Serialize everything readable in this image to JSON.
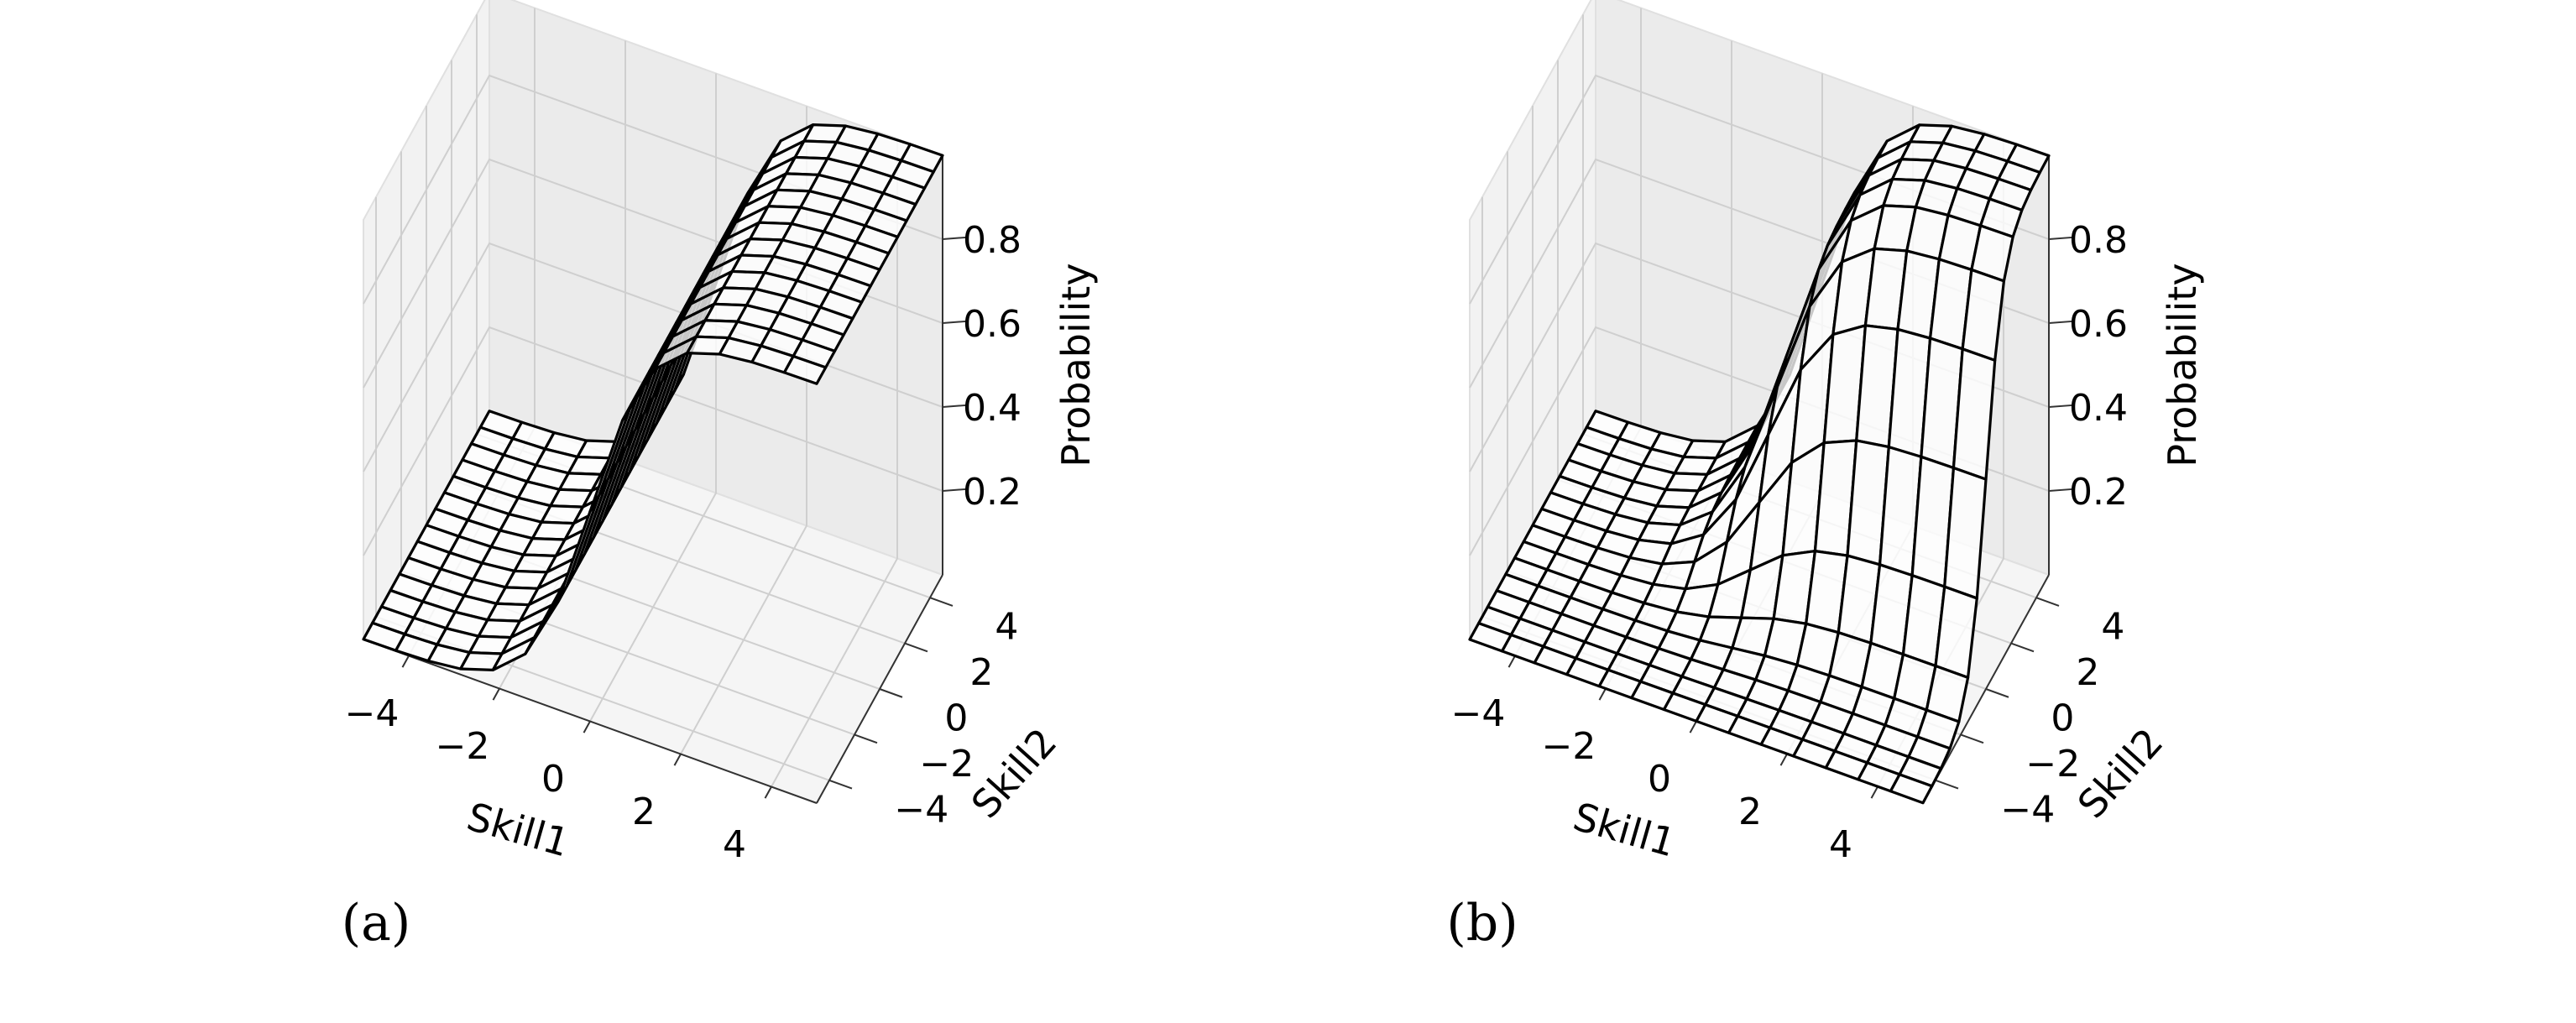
{
  "chart_data": [
    {
      "type": "surface3d",
      "caption": "(a)",
      "xlabel": "Skill1",
      "ylabel": "Skill2",
      "zlabel": "Probability",
      "xlim": [
        -5,
        5
      ],
      "ylim": [
        -5,
        5
      ],
      "zlim": [
        0,
        1
      ],
      "xticks": [
        "−4",
        "−2",
        "0",
        "2",
        "4"
      ],
      "yticks": [
        "−4",
        "−2",
        "0",
        "2",
        "4"
      ],
      "zticks": [
        "0.2",
        "0.4",
        "0.6",
        "0.8"
      ],
      "grid": true,
      "surface": "sigmoid(1.5 * Skill1)",
      "grid_lines": 15
    },
    {
      "type": "surface3d",
      "caption": "(b)",
      "xlabel": "Skill1",
      "ylabel": "Skill2",
      "zlabel": "Probability",
      "xlim": [
        -5,
        5
      ],
      "ylim": [
        -5,
        5
      ],
      "zlim": [
        0,
        1
      ],
      "xticks": [
        "−4",
        "−2",
        "0",
        "2",
        "4"
      ],
      "yticks": [
        "−4",
        "−2",
        "0",
        "2",
        "4"
      ],
      "zticks": [
        "0.2",
        "0.4",
        "0.6",
        "0.8"
      ],
      "grid": true,
      "surface": "sigmoid(1.5 * Skill1) * sigmoid(1.5 * Skill2)",
      "grid_lines": 15
    }
  ]
}
